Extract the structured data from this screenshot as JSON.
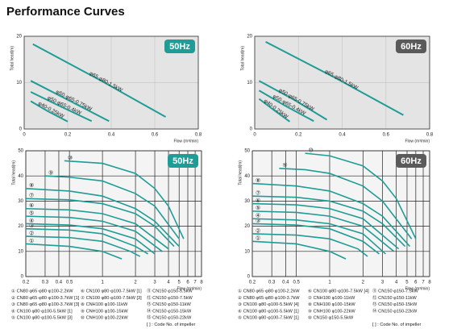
{
  "header": {
    "title": "Performance Curves"
  },
  "chart_data": [
    {
      "type": "line",
      "badge": "50Hz",
      "badge_color": "#1f9c95",
      "xlabel": "Flow (m³/min)",
      "ylabel": "Total head(m)",
      "xlim": [
        0,
        0.8
      ],
      "xticks": [
        0,
        0.2,
        0.4,
        0.6,
        0.8
      ],
      "ylim": [
        0,
        20
      ],
      "yticks": [
        0,
        10,
        20
      ],
      "background": "#e4e4e4",
      "grid": true,
      "grid_color": "#c8c8c8",
      "label_mode": "along",
      "series": [
        {
          "name": "φ65·φ80-1.5kW",
          "color": "#1f9c95",
          "x": [
            0.04,
            0.35,
            0.65
          ],
          "values": [
            18.3,
            10.5,
            2.6
          ]
        },
        {
          "name": "φ50·φ65-0.75kW",
          "color": "#1f9c95",
          "x": [
            0.03,
            0.2,
            0.39
          ],
          "values": [
            10.4,
            6.3,
            1.7
          ]
        },
        {
          "name": "φ50·φ65-0.4kW",
          "color": "#1f9c95",
          "x": [
            0.03,
            0.17,
            0.31
          ],
          "values": [
            8,
            4.8,
            1.7
          ]
        },
        {
          "name": "φ40-0.25kW",
          "color": "#1f9c95",
          "x": [
            0.03,
            0.11,
            0.2
          ],
          "values": [
            6,
            3.8,
            1.6
          ]
        }
      ]
    },
    {
      "type": "line",
      "badge": "60Hz",
      "badge_color": "#5a5a5a",
      "xlabel": "Flow (m³/min)",
      "ylabel": "Total head(m)",
      "xlim": [
        0,
        0.8
      ],
      "xticks": [
        0,
        0.2,
        0.4,
        0.6,
        0.8
      ],
      "ylim": [
        0,
        20
      ],
      "yticks": [
        0,
        10,
        20
      ],
      "background": "#e4e4e4",
      "grid": true,
      "grid_color": "#c8c8c8",
      "label_mode": "along",
      "series": [
        {
          "name": "φ65·φ80-1.5kW",
          "color": "#1f9c95",
          "x": [
            0.05,
            0.37,
            0.68
          ],
          "values": [
            18.8,
            11,
            3
          ]
        },
        {
          "name": "φ50·φ65-0.75kW",
          "color": "#1f9c95",
          "x": [
            0.02,
            0.18,
            0.33
          ],
          "values": [
            10.4,
            6.3,
            2
          ]
        },
        {
          "name": "φ50·φ65-0.4kW",
          "color": "#1f9c95",
          "x": [
            0.02,
            0.14,
            0.27
          ],
          "values": [
            8.3,
            5,
            1.7
          ]
        },
        {
          "name": "φ40-0.25kW",
          "color": "#1f9c95",
          "x": [
            0.02,
            0.09,
            0.16
          ],
          "values": [
            6.5,
            4,
            1.6
          ]
        }
      ]
    },
    {
      "type": "line",
      "badge": "50Hz",
      "badge_color": "#1f9c95",
      "xlabel": "Flow (m³/min)",
      "ylabel": "Total head(m)",
      "log_x": true,
      "xlim": [
        0.2,
        8
      ],
      "xticks": [
        0.2,
        0.3,
        0.4,
        0.5,
        1,
        2,
        3,
        4,
        5,
        6,
        7,
        8
      ],
      "ylim": [
        0,
        50
      ],
      "yticks": [
        0,
        10,
        20,
        30,
        40,
        50
      ],
      "background": "#f4f4f4",
      "grid": true,
      "grid_color": "#222222",
      "label_mode": "start",
      "series": [
        {
          "name": "①",
          "color": "#1f9c95",
          "x": [
            0.2,
            0.5,
            1,
            1.5
          ],
          "values": [
            13,
            12,
            10,
            7
          ]
        },
        {
          "name": "②",
          "color": "#1f9c95",
          "x": [
            0.2,
            0.5,
            1,
            1.8,
            2.2
          ],
          "values": [
            16,
            15.5,
            14,
            10,
            8
          ]
        },
        {
          "name": "③",
          "color": "#1f9c95",
          "x": [
            0.2,
            0.5,
            1,
            2,
            2.6
          ],
          "values": [
            19,
            18.5,
            17,
            12,
            9
          ]
        },
        {
          "name": "④",
          "color": "#1f9c95",
          "x": [
            0.2,
            0.5,
            1,
            2,
            3
          ],
          "values": [
            21,
            20.5,
            19,
            15,
            9
          ]
        },
        {
          "name": "⑤",
          "color": "#1f9c95",
          "x": [
            0.2,
            0.5,
            1,
            2,
            3.5
          ],
          "values": [
            24,
            23.5,
            22,
            18,
            10
          ]
        },
        {
          "name": "⑥",
          "color": "#1f9c95",
          "x": [
            0.2,
            0.5,
            1,
            2,
            4
          ],
          "values": [
            27,
            26.5,
            25,
            21,
            11
          ]
        },
        {
          "name": "⑦",
          "color": "#1f9c95",
          "x": [
            0.2,
            0.5,
            1,
            2,
            3,
            4.5
          ],
          "values": [
            31,
            30.5,
            29,
            25,
            20,
            12
          ]
        },
        {
          "name": "⑧",
          "color": "#1f9c95",
          "x": [
            0.2,
            0.5,
            1,
            2,
            3,
            5
          ],
          "values": [
            35,
            34,
            32,
            27,
            22,
            12
          ]
        },
        {
          "name": "⑨",
          "color": "#1f9c95",
          "x": [
            0.3,
            0.5,
            1,
            2,
            3,
            5
          ],
          "values": [
            40,
            39.5,
            38,
            33,
            28,
            15
          ]
        },
        {
          "name": "⑩",
          "color": "#1f9c95",
          "x": [
            0.45,
            1,
            2,
            3,
            4,
            5.5
          ],
          "values": [
            46,
            45,
            41,
            35,
            28,
            15
          ]
        }
      ]
    },
    {
      "type": "line",
      "badge": "60Hz",
      "badge_color": "#5a5a5a",
      "xlabel": "Flow (m³/min)",
      "ylabel": "Total head(m)",
      "log_x": true,
      "xlim": [
        0.2,
        8
      ],
      "xticks": [
        0.2,
        0.3,
        0.4,
        0.5,
        1,
        2,
        3,
        4,
        5,
        6,
        7,
        8
      ],
      "ylim": [
        0,
        50
      ],
      "yticks": [
        0,
        10,
        20,
        30,
        40,
        50
      ],
      "background": "#f4f4f4",
      "grid": true,
      "grid_color": "#222222",
      "label_mode": "start",
      "series": [
        {
          "name": "①",
          "color": "#1f9c95",
          "x": [
            0.2,
            0.5,
            1,
            1.4
          ],
          "values": [
            14,
            13,
            10,
            7
          ]
        },
        {
          "name": "②",
          "color": "#1f9c95",
          "x": [
            0.2,
            0.5,
            1,
            1.8,
            2.2
          ],
          "values": [
            17,
            16.5,
            15,
            11,
            8
          ]
        },
        {
          "name": "③",
          "color": "#1f9c95",
          "x": [
            0.2,
            0.5,
            1,
            2,
            2.8
          ],
          "values": [
            21,
            20.5,
            19,
            14,
            9
          ]
        },
        {
          "name": "④",
          "color": "#1f9c95",
          "x": [
            0.2,
            0.5,
            1,
            2,
            3.2
          ],
          "values": [
            23,
            22.5,
            21,
            17,
            9
          ]
        },
        {
          "name": "⑤",
          "color": "#1f9c95",
          "x": [
            0.2,
            0.5,
            1,
            2,
            3.8
          ],
          "values": [
            26,
            25.5,
            24,
            20,
            10
          ]
        },
        {
          "name": "⑥",
          "color": "#1f9c95",
          "x": [
            0.2,
            0.5,
            1,
            2,
            4.2
          ],
          "values": [
            29,
            28.5,
            27,
            23,
            11
          ]
        },
        {
          "name": "⑦",
          "color": "#1f9c95",
          "x": [
            0.2,
            0.5,
            1,
            2,
            3,
            4.8
          ],
          "values": [
            32,
            31.5,
            30,
            26,
            21,
            12
          ]
        },
        {
          "name": "⑧",
          "color": "#1f9c95",
          "x": [
            0.2,
            0.5,
            1,
            2,
            3,
            5.3
          ],
          "values": [
            37,
            36,
            34,
            29,
            24,
            12
          ]
        },
        {
          "name": "⑨",
          "color": "#1f9c95",
          "x": [
            0.35,
            0.6,
            1,
            2,
            3,
            5.5
          ],
          "values": [
            43,
            42.5,
            41,
            36,
            30,
            15
          ]
        },
        {
          "name": "⑩",
          "color": "#1f9c95",
          "x": [
            0.6,
            1,
            2,
            3,
            4,
            6
          ],
          "values": [
            49,
            48,
            44,
            38,
            31,
            15
          ]
        }
      ]
    }
  ],
  "legends": [
    {
      "columns": [
        [
          "① CN80 φ65·φ80·φ100-2.2kW",
          "② CN80 φ65·φ80·φ100-3.7kW [1]",
          "③ CN80 φ65·φ80·φ100-3.7kW [3]",
          "④ CN100 φ80·φ100-5.5kW [1]",
          "⑤ CN100 φ80·φ100-5.5kW [3]"
        ],
        [
          "⑥ CN100 φ80·φ100-7.5kW [1]",
          "⑦ CN100 φ80·φ100-7.5kW [3]",
          "⑧ CNH100 φ100-11kW",
          "⑨ CNH100 φ100-15kW",
          "⑩ CNH100 φ100-22kW"
        ],
        [
          "⑪ CN150 φ150-5.5kW",
          "⑫ CN150 φ150-7.5kW",
          "⑬ CN150 φ150-11kW",
          "⑭ CN150 φ150-15kW",
          "⑮ CN150 φ150-22kW"
        ]
      ],
      "note": "[ ] : Code No. of impeller"
    },
    {
      "columns": [
        [
          "① CN80 φ65·φ80·φ100-2.2kW",
          "② CN80 φ65·φ80·φ100-3.7kW",
          "③ CN100 φ80·φ100-5.5kW [4]",
          "④ CN100 φ80·φ100-5.5kW [1]",
          "⑤ CN100 φ80·φ100-7.5kW [1]"
        ],
        [
          "⑥ CN100 φ80·φ100-7.5kW [4]",
          "⑦ CNH100 φ100-11kW",
          "⑧ CNH100 φ100-15kW",
          "⑨ CNH100 φ100-22kW",
          "⑩ CN150 φ150-5.5kW"
        ],
        [
          "⑪ CN150 φ150-7.5kW",
          "⑫ CN150 φ150-11kW",
          "⑬ CN150 φ150-15kW",
          "⑭ CN150 φ150-22kW"
        ]
      ],
      "note": "[ ] : Code No. of impeller"
    }
  ]
}
